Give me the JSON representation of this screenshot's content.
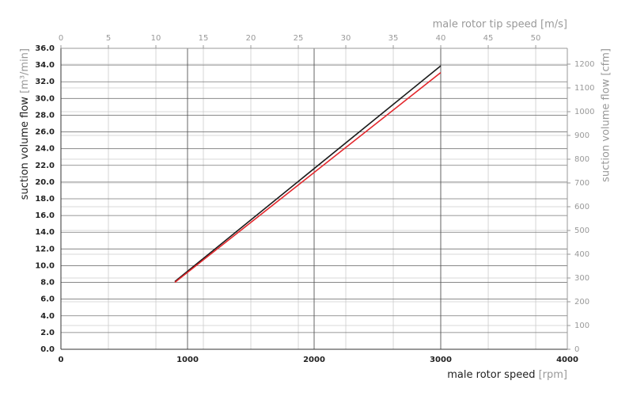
{
  "chart_data": {
    "type": "line",
    "x_label": "male rotor speed",
    "x_label_unit": "[rpm]",
    "y_label": "suction volume flow",
    "y_label_unit": "[m³/min]",
    "x2_label": "male rotor tip speed [m/s]",
    "y2_label": "suction volume flow [cfm]",
    "xlim": [
      0,
      4000
    ],
    "xticks": [
      0,
      1000,
      2000,
      3000,
      4000
    ],
    "x2lim": [
      0,
      53.33
    ],
    "x2ticks": [
      0,
      5,
      10,
      15,
      20,
      25,
      30,
      35,
      40,
      45,
      50
    ],
    "ylim": [
      0,
      36
    ],
    "yticks": [
      {
        "value": 0,
        "label": "0.0"
      },
      {
        "value": 2,
        "label": "2.0"
      },
      {
        "value": 4,
        "label": "4.0"
      },
      {
        "value": 6,
        "label": "6.0"
      },
      {
        "value": 8,
        "label": "8.0"
      },
      {
        "value": 10,
        "label": "10.0"
      },
      {
        "value": 12,
        "label": "12.0"
      },
      {
        "value": 14,
        "label": "14.0"
      },
      {
        "value": 16,
        "label": "16.0"
      },
      {
        "value": 18,
        "label": "18.0"
      },
      {
        "value": 20,
        "label": "20.0"
      },
      {
        "value": 22,
        "label": "22.0"
      },
      {
        "value": 24,
        "label": "24.0"
      },
      {
        "value": 26,
        "label": "26.0"
      },
      {
        "value": 28,
        "label": "28.0"
      },
      {
        "value": 30,
        "label": "30.0"
      },
      {
        "value": 32,
        "label": "32.0"
      },
      {
        "value": 34,
        "label": "34.0"
      },
      {
        "value": 36,
        "label": "36.0"
      }
    ],
    "y2lim": [
      0,
      1266.7
    ],
    "y2ticks": [
      0,
      100,
      200,
      300,
      400,
      500,
      600,
      700,
      800,
      900,
      1000,
      1100,
      1200
    ],
    "grid": true,
    "series": [
      {
        "color": "#1a1a1a",
        "x": [
          900,
          3000
        ],
        "values": [
          8.1,
          33.9
        ]
      },
      {
        "color": "#e3262b",
        "x": [
          900,
          3000
        ],
        "values": [
          8.0,
          33.1
        ]
      }
    ]
  }
}
